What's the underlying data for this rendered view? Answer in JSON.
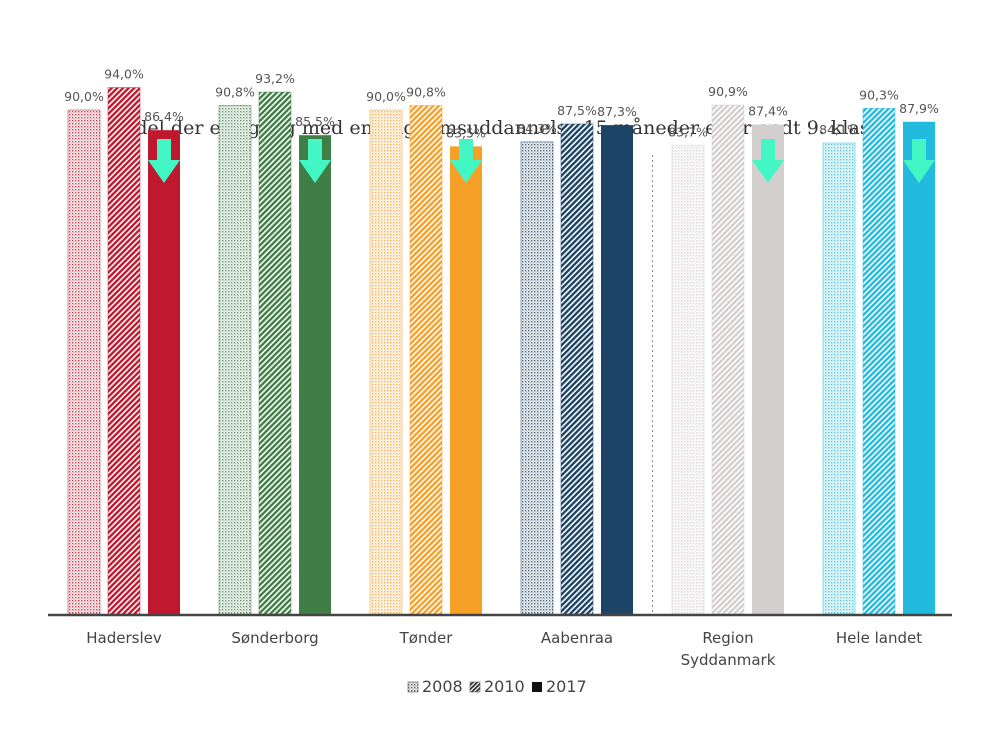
{
  "chart_data": {
    "type": "bar",
    "title": "Andel der er i gang med en ungdomsuddannelse 15 måneder efter endt 9. klasse",
    "xlabel": "",
    "ylabel": "",
    "ylim": [
      0,
      100
    ],
    "grid": false,
    "legend_position": "bottom-center",
    "categories": [
      "Haderslev",
      "Sønderborg",
      "Tønder",
      "Aabenraa",
      "Region Syddanmark",
      "Hele landet"
    ],
    "category_lines": [
      [
        "Haderslev"
      ],
      [
        "Sønderborg"
      ],
      [
        "Tønder"
      ],
      [
        "Aabenraa"
      ],
      [
        "Region",
        "Syddanmark"
      ],
      [
        "Hele landet"
      ]
    ],
    "category_colors": [
      "#c0182e",
      "#3f7f45",
      "#f7a028",
      "#1d4466",
      "#d3cfcf",
      "#22bbdf"
    ],
    "series": [
      {
        "name": "2008",
        "pattern": "fine-dots",
        "values": [
          90.0,
          90.8,
          90.0,
          84.3,
          83.7,
          84.1
        ],
        "labels": [
          "90,0%",
          "90,8%",
          "90,0%",
          "84,3%",
          "83,7%",
          "84,1%"
        ]
      },
      {
        "name": "2010",
        "pattern": "hatch",
        "values": [
          94.0,
          93.2,
          90.8,
          87.5,
          90.9,
          90.3
        ],
        "labels": [
          "94,0%",
          "93,2%",
          "90,8%",
          "87,5%",
          "90,9%",
          "90,3%"
        ]
      },
      {
        "name": "2017",
        "pattern": "solid",
        "values": [
          86.4,
          85.5,
          83.5,
          87.3,
          87.4,
          87.9
        ],
        "labels": [
          "86,4%",
          "85,5%",
          "83,5%",
          "87,3%",
          "87,4%",
          "87,9%"
        ]
      }
    ],
    "highlight_arrows": {
      "color": "#43f7c4",
      "categories": [
        "Haderslev",
        "Sønderborg",
        "Tønder",
        "Region Syddanmark",
        "Hele landet"
      ]
    },
    "separator_before": "Region Syddanmark"
  }
}
